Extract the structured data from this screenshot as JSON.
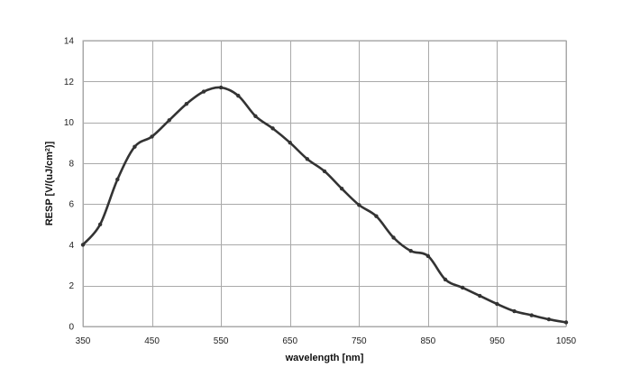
{
  "chart_data": {
    "type": "line",
    "title": "",
    "xlabel": "wavelength [nm]",
    "ylabel_main": "RESP [V/(uJ/cm",
    "ylabel_sup": "2",
    "ylabel_tail": ")]",
    "xlim": [
      350,
      1050
    ],
    "ylim": [
      0,
      14
    ],
    "xticks": [
      350,
      450,
      550,
      650,
      750,
      850,
      950,
      1050
    ],
    "yticks": [
      0,
      2,
      4,
      6,
      8,
      10,
      12,
      14
    ],
    "grid": true,
    "legend": "none",
    "series": [
      {
        "color": "#333333",
        "x": [
          350,
          375,
          400,
          425,
          450,
          475,
          500,
          525,
          550,
          575,
          600,
          625,
          650,
          675,
          700,
          725,
          750,
          775,
          800,
          825,
          850,
          875,
          900,
          925,
          950,
          975,
          1000,
          1025,
          1050
        ],
        "y": [
          4.0,
          5.0,
          7.2,
          8.8,
          9.3,
          10.1,
          10.9,
          11.5,
          11.7,
          11.3,
          10.3,
          9.7,
          9.0,
          8.2,
          7.6,
          6.75,
          5.95,
          5.4,
          4.35,
          3.7,
          3.45,
          2.3,
          1.9,
          1.5,
          1.1,
          0.75,
          0.55,
          0.35,
          0.2
        ]
      }
    ]
  }
}
